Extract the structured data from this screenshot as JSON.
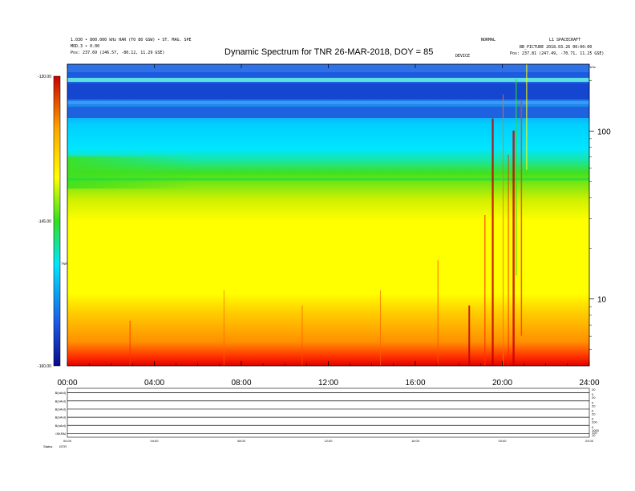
{
  "header": {
    "left_line1": "1.030 • 800.000 kHz HAR (TO 80 GSW) • ST. MAG. SPE",
    "left_line2": "MOD.3 • 0.00",
    "left_sub": "Pos: 237.69 (246.57, -80.12, 11.29 GSE)",
    "mid": "DEVICE",
    "right_top1": "NORMAL",
    "right_top2": "L1 SPACECRAFT",
    "right_line2": "BB_PICTURE 2018.03.26 00:00:00",
    "right_sub": "Pos: 237.81 (247.49, -70.71, 11.25 GSE)"
  },
  "chart_data": {
    "type": "heatmap",
    "title": "Dynamic Spectrum for TNR 26-MAR-2018, DOY = 85",
    "x_range": [
      "00:00",
      "24:00"
    ],
    "x_ticks": [
      "00:00",
      "04:00",
      "08:00",
      "12:00",
      "16:00",
      "20:00",
      "24:00"
    ],
    "y_scale": "log",
    "y_range": [
      4,
      250
    ],
    "y_ticks": [
      100,
      10
    ],
    "y_unit_label": "kHz",
    "colorbar": {
      "ticks": [
        "-130.00",
        "-145.00",
        "-160.00"
      ],
      "range": [
        -160,
        -130
      ],
      "label": "TNR",
      "colors": [
        "#0a0a8c",
        "#1a5ae6",
        "#00e6ff",
        "#18e618",
        "#ffff00",
        "#ffa500",
        "#ff1a00",
        "#b40000"
      ]
    },
    "panels": [
      {
        "label": "B(nAnl)",
        "ticks": [
          "20",
          "0"
        ]
      },
      {
        "label": "B(nAnl)",
        "ticks": [
          "20",
          "0"
        ]
      },
      {
        "label": "B(nAnl)",
        "ticks": [
          "20",
          "0"
        ]
      },
      {
        "label": "B(nAnl)",
        "ticks": [
          "20",
          "0"
        ]
      },
      {
        "label": "B(nAnl)",
        "ticks": [
          "200",
          "0"
        ]
      },
      {
        "label": "ISKRM",
        "ticks": [
          "1000",
          "100",
          "10"
        ]
      }
    ],
    "panel_x_ticks": [
      "00:00",
      "04:00",
      "08:00",
      "12:00",
      "16:00",
      "20:00",
      "24:00"
    ],
    "footer_label": "Status",
    "footer_val": "ISTR"
  }
}
